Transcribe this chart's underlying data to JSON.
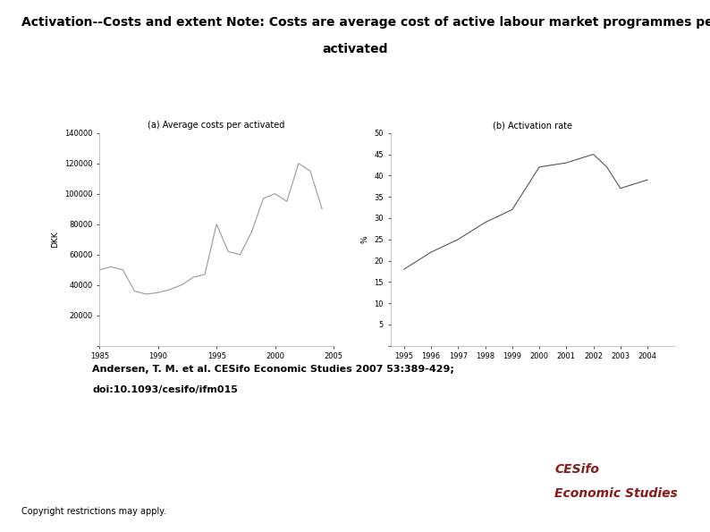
{
  "title_line1": "Activation--Costs and extent Note: Costs are average cost of active labour market programmes per",
  "title_line2": "activated",
  "citation_line1": "Andersen, T. M. et al. CESifo Economic Studies 2007 53:389-429;",
  "citation_line2": "doi:10.1093/cesifo/ifm015",
  "copyright_text": "Copyright restrictions may apply.",
  "logo_text_line1": "CESifo",
  "logo_text_line2": "Economic Studies",
  "logo_color": "#8B1A1A",
  "logo_bg": "#E0E0E0",
  "subplot_a_title": "(a) Average costs per activated",
  "subplot_b_title": "(b) Activation rate",
  "subplot_a_ylabel": "DKK",
  "subplot_b_ylabel": "%",
  "subplot_a_x": [
    1985,
    1986,
    1987,
    1988,
    1989,
    1990,
    1991,
    1992,
    1993,
    1994,
    1995,
    1996,
    1997,
    1998,
    1999,
    2000,
    2001,
    2002,
    2003,
    2004
  ],
  "subplot_a_y": [
    50000,
    52000,
    50000,
    36000,
    34000,
    35000,
    37000,
    40000,
    45000,
    47000,
    80000,
    62000,
    60000,
    75000,
    97000,
    100000,
    95000,
    120000,
    115000,
    90000
  ],
  "subplot_b_x": [
    1995,
    1996,
    1997,
    1998,
    1999,
    2000,
    2001,
    2002,
    2002.5,
    2003,
    2004
  ],
  "subplot_b_y": [
    18,
    22,
    25,
    29,
    32,
    42,
    43,
    45,
    42,
    37,
    39
  ],
  "line_color_a": "#999999",
  "line_color_b": "#555555",
  "bg_color": "#FFFFFF",
  "title_fontsize": 10,
  "subtitle_fontsize": 10,
  "citation_fontsize": 8,
  "copyright_fontsize": 7,
  "tick_label_fontsize": 6,
  "axis_label_fontsize": 6.5,
  "subplot_title_fontsize": 7,
  "subplot_a_ylim": [
    0,
    140000
  ],
  "subplot_a_yticks": [
    0,
    20000,
    40000,
    60000,
    80000,
    100000,
    120000,
    140000
  ],
  "subplot_b_ylim": [
    0,
    50
  ],
  "subplot_b_yticks": [
    0,
    5,
    10,
    15,
    20,
    25,
    30,
    35,
    40,
    45,
    50
  ]
}
